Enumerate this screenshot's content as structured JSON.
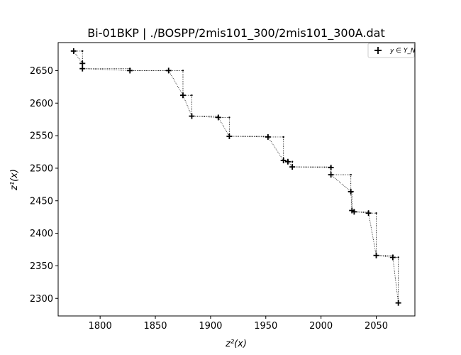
{
  "chart_data": {
    "type": "scatter",
    "title": "Bi-01BKP | ./BOSPP/2mis101_300/2mis101_300A.dat",
    "xlabel": "z²(x)",
    "ylabel": "z¹(x)",
    "xlim": [
      1762,
      2085
    ],
    "ylim": [
      2273,
      2693
    ],
    "xticks": [
      1800,
      1850,
      1900,
      1950,
      2000,
      2050
    ],
    "yticks": [
      2300,
      2350,
      2400,
      2450,
      2500,
      2550,
      2600,
      2650
    ],
    "grid": false,
    "legend": {
      "placement": "top-right",
      "label": "y ∈ Y_N",
      "marker": "+"
    },
    "series": [
      {
        "name": "y ∈ Y_N",
        "marker": "+",
        "color": "#000000",
        "x": [
          1776,
          1784,
          1784,
          1827,
          1862,
          1875,
          1883,
          1907,
          1917,
          1952,
          1966,
          1970,
          1974,
          2009,
          2009,
          2027,
          2028,
          2030,
          2043,
          2050,
          2065,
          2070
        ],
        "y": [
          2680,
          2661,
          2653,
          2650,
          2650,
          2612,
          2580,
          2578,
          2549,
          2548,
          2512,
          2510,
          2502,
          2501,
          2490,
          2464,
          2435,
          2433,
          2431,
          2366,
          2363,
          2293
        ]
      }
    ],
    "staircase": {
      "style": "dotted",
      "color": "#000000",
      "connects": "consecutive points via corner points"
    }
  }
}
